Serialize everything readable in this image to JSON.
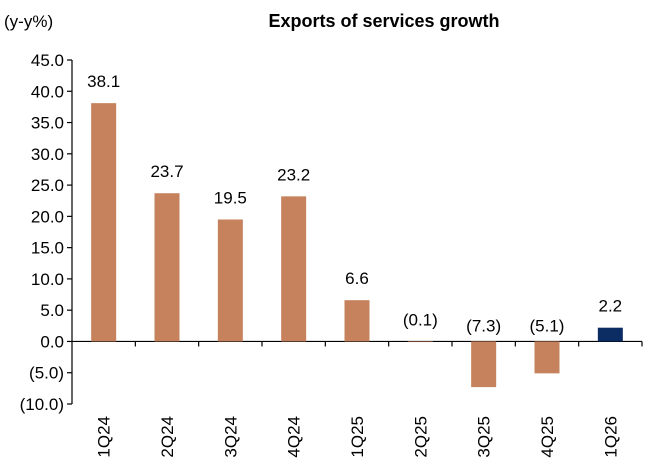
{
  "chart_data": {
    "type": "bar",
    "title": "Exports of services growth",
    "ylabel": "(y-y%)",
    "xlabel": "",
    "ylim": [
      -10,
      45
    ],
    "yticks": [
      45,
      40,
      35,
      30,
      25,
      20,
      15,
      10,
      5,
      0,
      -5,
      -10
    ],
    "ytick_labels": [
      "45.0",
      "40.0",
      "35.0",
      "30.0",
      "25.0",
      "20.0",
      "15.0",
      "10.0",
      "5.0",
      "0.0",
      "(5.0)",
      "(10.0)"
    ],
    "categories": [
      "1Q24",
      "2Q24",
      "3Q24",
      "4Q24",
      "1Q25",
      "2Q25",
      "3Q25",
      "4Q25",
      "1Q26"
    ],
    "values": [
      38.1,
      23.7,
      19.5,
      23.2,
      6.6,
      -0.1,
      -7.3,
      -5.1,
      2.2
    ],
    "data_labels": [
      "38.1",
      "23.7",
      "19.5",
      "23.2",
      "6.6",
      "(0.1)",
      "(7.3)",
      "(5.1)",
      "2.2"
    ],
    "bar_colors": [
      "#C5825C",
      "#C5825C",
      "#C5825C",
      "#C5825C",
      "#C5825C",
      "#C5825C",
      "#C5825C",
      "#C5825C",
      "#0B2D63"
    ],
    "grid": false,
    "legend": "none"
  }
}
